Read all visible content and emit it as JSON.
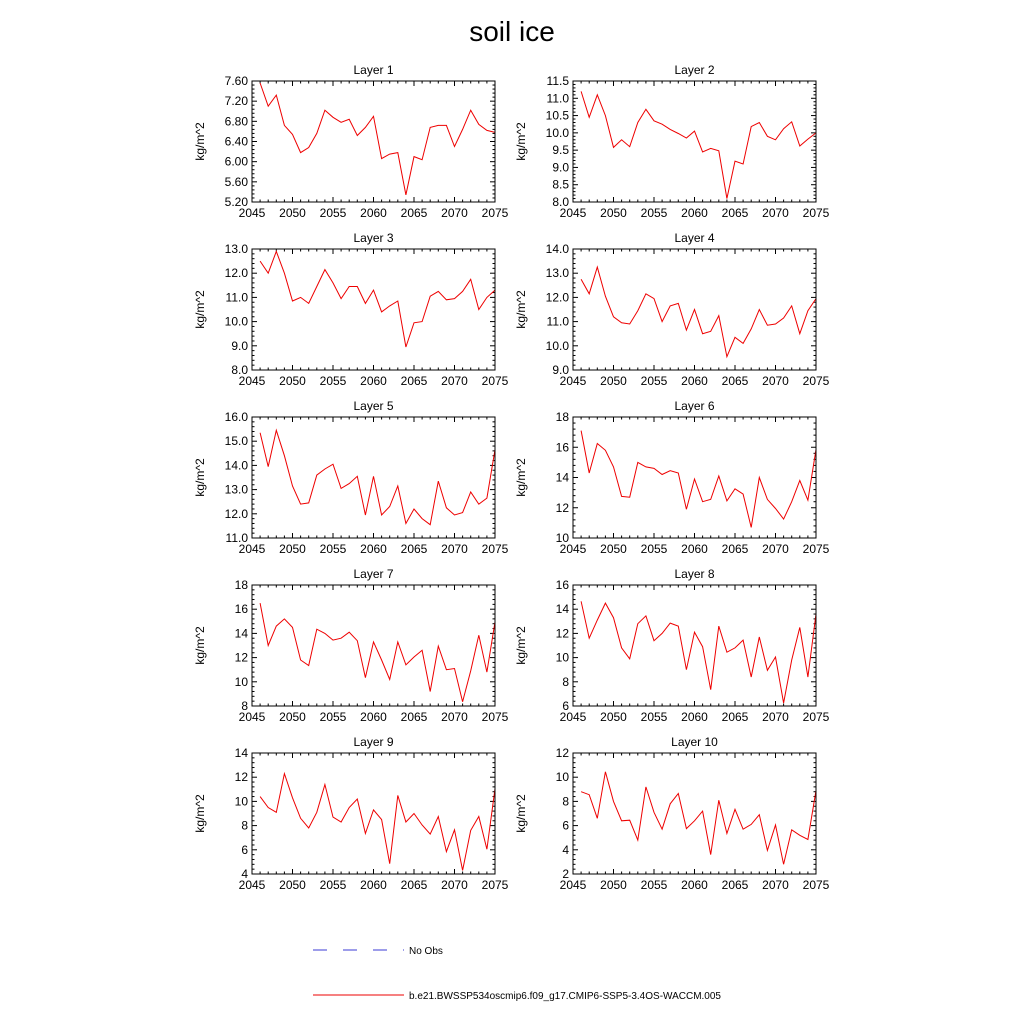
{
  "title": "soil ice",
  "legend": {
    "obs_label": "No Obs",
    "model_label": "b.e21.BWSSP534oscmip6.f09_g17.CMIP6-SSP5-3.4OS-WACCM.005",
    "obs_color": "#3b3bd6",
    "model_color": "#ee0000"
  },
  "chart_data": [
    {
      "type": "line",
      "title": "Layer 1",
      "ylabel": "kg/m^2",
      "xlim": [
        2045,
        2075
      ],
      "ylim": [
        5.2,
        7.6
      ],
      "yticks": [
        5.2,
        5.6,
        6.0,
        6.4,
        6.8,
        7.2,
        7.6
      ],
      "ytick_labels": [
        "5.20",
        "5.60",
        "6.00",
        "6.40",
        "6.80",
        "7.20",
        "7.60"
      ],
      "xticks": [
        2045,
        2050,
        2055,
        2060,
        2065,
        2070,
        2075
      ],
      "series": [
        {
          "x": [
            2046,
            2047,
            2048,
            2049,
            2050,
            2051,
            2052,
            2053,
            2054,
            2055,
            2056,
            2057,
            2058,
            2059,
            2060,
            2061,
            2062,
            2063,
            2064,
            2065,
            2066,
            2067,
            2068,
            2069,
            2070,
            2071,
            2072,
            2073,
            2074,
            2075
          ],
          "values": [
            7.56,
            7.1,
            7.32,
            6.72,
            6.54,
            6.18,
            6.28,
            6.56,
            7.02,
            6.88,
            6.78,
            6.84,
            6.52,
            6.68,
            6.9,
            6.06,
            6.15,
            6.18,
            5.34,
            6.1,
            6.04,
            6.68,
            6.72,
            6.72,
            6.3,
            6.64,
            7.02,
            6.74,
            6.62,
            6.58
          ]
        }
      ]
    },
    {
      "type": "line",
      "title": "Layer 2",
      "ylabel": "kg/m^2",
      "xlim": [
        2045,
        2075
      ],
      "ylim": [
        8.0,
        11.5
      ],
      "yticks": [
        8.0,
        8.5,
        9.0,
        9.5,
        10.0,
        10.5,
        11.0,
        11.5
      ],
      "ytick_labels": [
        "8.0",
        "8.5",
        "9.0",
        "9.5",
        "10.0",
        "10.5",
        "11.0",
        "11.5"
      ],
      "xticks": [
        2045,
        2050,
        2055,
        2060,
        2065,
        2070,
        2075
      ],
      "series": [
        {
          "x": [
            2046,
            2047,
            2048,
            2049,
            2050,
            2051,
            2052,
            2053,
            2054,
            2055,
            2056,
            2057,
            2058,
            2059,
            2060,
            2061,
            2062,
            2063,
            2064,
            2065,
            2066,
            2067,
            2068,
            2069,
            2070,
            2071,
            2072,
            2073,
            2074,
            2075
          ],
          "values": [
            11.2,
            10.45,
            11.1,
            10.5,
            9.58,
            9.8,
            9.6,
            10.3,
            10.68,
            10.35,
            10.25,
            10.1,
            9.98,
            9.85,
            10.05,
            9.45,
            9.55,
            9.48,
            8.1,
            9.18,
            9.1,
            10.18,
            10.3,
            9.9,
            9.8,
            10.12,
            10.32,
            9.62,
            9.82,
            10.0
          ]
        }
      ]
    },
    {
      "type": "line",
      "title": "Layer 3",
      "ylabel": "kg/m^2",
      "xlim": [
        2045,
        2075
      ],
      "ylim": [
        8.0,
        13.0
      ],
      "yticks": [
        8.0,
        9.0,
        10.0,
        11.0,
        12.0,
        13.0
      ],
      "ytick_labels": [
        "8.0",
        "9.0",
        "10.0",
        "11.0",
        "12.0",
        "13.0"
      ],
      "xticks": [
        2045,
        2050,
        2055,
        2060,
        2065,
        2070,
        2075
      ],
      "series": [
        {
          "x": [
            2046,
            2047,
            2048,
            2049,
            2050,
            2051,
            2052,
            2053,
            2054,
            2055,
            2056,
            2057,
            2058,
            2059,
            2060,
            2061,
            2062,
            2063,
            2064,
            2065,
            2066,
            2067,
            2068,
            2069,
            2070,
            2071,
            2072,
            2073,
            2074,
            2075
          ],
          "values": [
            12.5,
            12.0,
            12.9,
            12.0,
            10.85,
            11.0,
            10.75,
            11.45,
            12.15,
            11.6,
            10.95,
            11.45,
            11.45,
            10.75,
            11.3,
            10.4,
            10.65,
            10.85,
            8.95,
            9.95,
            10.0,
            11.05,
            11.25,
            10.9,
            10.95,
            11.25,
            11.75,
            10.5,
            11.0,
            11.3
          ]
        }
      ]
    },
    {
      "type": "line",
      "title": "Layer 4",
      "ylabel": "kg/m^2",
      "xlim": [
        2045,
        2075
      ],
      "ylim": [
        9.0,
        14.0
      ],
      "yticks": [
        9.0,
        10.0,
        11.0,
        12.0,
        13.0,
        14.0
      ],
      "ytick_labels": [
        "9.0",
        "10.0",
        "11.0",
        "12.0",
        "13.0",
        "14.0"
      ],
      "xticks": [
        2045,
        2050,
        2055,
        2060,
        2065,
        2070,
        2075
      ],
      "series": [
        {
          "x": [
            2046,
            2047,
            2048,
            2049,
            2050,
            2051,
            2052,
            2053,
            2054,
            2055,
            2056,
            2057,
            2058,
            2059,
            2060,
            2061,
            2062,
            2063,
            2064,
            2065,
            2066,
            2067,
            2068,
            2069,
            2070,
            2071,
            2072,
            2073,
            2074,
            2075
          ],
          "values": [
            12.75,
            12.15,
            13.25,
            12.05,
            11.2,
            10.95,
            10.9,
            11.45,
            12.15,
            11.95,
            11.0,
            11.65,
            11.75,
            10.65,
            11.5,
            10.5,
            10.6,
            11.25,
            9.55,
            10.35,
            10.1,
            10.7,
            11.5,
            10.85,
            10.9,
            11.15,
            11.65,
            10.5,
            11.45,
            11.95
          ]
        }
      ]
    },
    {
      "type": "line",
      "title": "Layer 5",
      "ylabel": "kg/m^2",
      "xlim": [
        2045,
        2075
      ],
      "ylim": [
        11.0,
        16.0
      ],
      "yticks": [
        11.0,
        12.0,
        13.0,
        14.0,
        15.0,
        16.0
      ],
      "ytick_labels": [
        "11.0",
        "12.0",
        "13.0",
        "14.0",
        "15.0",
        "16.0"
      ],
      "xticks": [
        2045,
        2050,
        2055,
        2060,
        2065,
        2070,
        2075
      ],
      "series": [
        {
          "x": [
            2046,
            2047,
            2048,
            2049,
            2050,
            2051,
            2052,
            2053,
            2054,
            2055,
            2056,
            2057,
            2058,
            2059,
            2060,
            2061,
            2062,
            2063,
            2064,
            2065,
            2066,
            2067,
            2068,
            2069,
            2070,
            2071,
            2072,
            2073,
            2074,
            2075
          ],
          "values": [
            15.35,
            13.95,
            15.45,
            14.4,
            13.15,
            12.4,
            12.45,
            13.6,
            13.85,
            14.05,
            13.05,
            13.25,
            13.55,
            11.95,
            13.55,
            11.95,
            12.3,
            13.15,
            11.6,
            12.2,
            11.8,
            11.55,
            13.35,
            12.25,
            11.95,
            12.05,
            12.9,
            12.4,
            12.65,
            14.65
          ]
        }
      ]
    },
    {
      "type": "line",
      "title": "Layer 6",
      "ylabel": "kg/m^2",
      "xlim": [
        2045,
        2075
      ],
      "ylim": [
        10,
        18
      ],
      "yticks": [
        10,
        12,
        14,
        16,
        18
      ],
      "ytick_labels": [
        "10",
        "12",
        "14",
        "16",
        "18"
      ],
      "xticks": [
        2045,
        2050,
        2055,
        2060,
        2065,
        2070,
        2075
      ],
      "series": [
        {
          "x": [
            2046,
            2047,
            2048,
            2049,
            2050,
            2051,
            2052,
            2053,
            2054,
            2055,
            2056,
            2057,
            2058,
            2059,
            2060,
            2061,
            2062,
            2063,
            2064,
            2065,
            2066,
            2067,
            2068,
            2069,
            2070,
            2071,
            2072,
            2073,
            2074,
            2075
          ],
          "values": [
            17.1,
            14.3,
            16.25,
            15.8,
            14.7,
            12.75,
            12.7,
            15.0,
            14.7,
            14.6,
            14.2,
            14.45,
            14.3,
            11.9,
            13.9,
            12.4,
            12.55,
            14.1,
            12.45,
            13.25,
            12.9,
            10.7,
            14.0,
            12.55,
            11.95,
            11.25,
            12.4,
            13.8,
            12.5,
            15.85
          ]
        }
      ]
    },
    {
      "type": "line",
      "title": "Layer 7",
      "ylabel": "kg/m^2",
      "xlim": [
        2045,
        2075
      ],
      "ylim": [
        8,
        18
      ],
      "yticks": [
        8,
        10,
        12,
        14,
        16,
        18
      ],
      "ytick_labels": [
        "8",
        "10",
        "12",
        "14",
        "16",
        "18"
      ],
      "xticks": [
        2045,
        2050,
        2055,
        2060,
        2065,
        2070,
        2075
      ],
      "series": [
        {
          "x": [
            2046,
            2047,
            2048,
            2049,
            2050,
            2051,
            2052,
            2053,
            2054,
            2055,
            2056,
            2057,
            2058,
            2059,
            2060,
            2061,
            2062,
            2063,
            2064,
            2065,
            2066,
            2067,
            2068,
            2069,
            2070,
            2071,
            2072,
            2073,
            2074,
            2075
          ],
          "values": [
            16.5,
            13.0,
            14.6,
            15.2,
            14.5,
            11.8,
            11.35,
            14.35,
            14.0,
            13.45,
            13.6,
            14.1,
            13.4,
            10.35,
            13.3,
            11.8,
            10.2,
            13.3,
            11.4,
            12.05,
            12.6,
            9.2,
            12.95,
            11.0,
            11.1,
            8.35,
            10.9,
            13.85,
            10.8,
            14.95
          ]
        }
      ]
    },
    {
      "type": "line",
      "title": "Layer 8",
      "ylabel": "kg/m^2",
      "xlim": [
        2045,
        2075
      ],
      "ylim": [
        6,
        16
      ],
      "yticks": [
        6,
        8,
        10,
        12,
        14,
        16
      ],
      "ytick_labels": [
        "6",
        "8",
        "10",
        "12",
        "14",
        "16"
      ],
      "xticks": [
        2045,
        2050,
        2055,
        2060,
        2065,
        2070,
        2075
      ],
      "series": [
        {
          "x": [
            2046,
            2047,
            2048,
            2049,
            2050,
            2051,
            2052,
            2053,
            2054,
            2055,
            2056,
            2057,
            2058,
            2059,
            2060,
            2061,
            2062,
            2063,
            2064,
            2065,
            2066,
            2067,
            2068,
            2069,
            2070,
            2071,
            2072,
            2073,
            2074,
            2075
          ],
          "values": [
            14.65,
            11.6,
            13.1,
            14.5,
            13.3,
            10.8,
            9.9,
            12.8,
            13.45,
            11.4,
            12.0,
            12.85,
            12.6,
            9.0,
            12.1,
            10.9,
            7.35,
            12.6,
            10.45,
            10.8,
            11.45,
            8.4,
            11.7,
            8.95,
            10.05,
            6.25,
            9.8,
            12.5,
            8.4,
            13.6
          ]
        }
      ]
    },
    {
      "type": "line",
      "title": "Layer 9",
      "ylabel": "kg/m^2",
      "xlim": [
        2045,
        2075
      ],
      "ylim": [
        4,
        14
      ],
      "yticks": [
        4,
        6,
        8,
        10,
        12,
        14
      ],
      "ytick_labels": [
        "4",
        "6",
        "8",
        "10",
        "12",
        "14"
      ],
      "xticks": [
        2045,
        2050,
        2055,
        2060,
        2065,
        2070,
        2075
      ],
      "xtick_labels": [
        "2045",
        "2050",
        "2055",
        "2060",
        "2065",
        "2070",
        "2075"
      ],
      "series": [
        {
          "x": [
            2046,
            2047,
            2048,
            2049,
            2050,
            2051,
            2052,
            2053,
            2054,
            2055,
            2056,
            2057,
            2058,
            2059,
            2060,
            2061,
            2062,
            2063,
            2064,
            2065,
            2066,
            2067,
            2068,
            2069,
            2070,
            2071,
            2072,
            2073,
            2074,
            2075
          ],
          "values": [
            10.4,
            9.5,
            9.1,
            12.3,
            10.3,
            8.6,
            7.8,
            9.1,
            11.4,
            8.7,
            8.3,
            9.5,
            10.2,
            7.35,
            9.3,
            8.5,
            4.85,
            10.5,
            8.3,
            9.0,
            8.05,
            7.3,
            8.75,
            5.85,
            7.65,
            4.3,
            7.6,
            8.75,
            6.05,
            11.05
          ]
        }
      ]
    },
    {
      "type": "line",
      "title": "Layer 10",
      "ylabel": "kg/m^2",
      "xlim": [
        2045,
        2075
      ],
      "ylim": [
        2,
        12
      ],
      "yticks": [
        2,
        4,
        6,
        8,
        10,
        12
      ],
      "ytick_labels": [
        "2",
        "4",
        "6",
        "8",
        "10",
        "12"
      ],
      "xticks": [
        2045,
        2050,
        2055,
        2060,
        2065,
        2070,
        2075
      ],
      "xtick_labels": [
        "2045",
        "2050",
        "2055",
        "2060",
        "2065",
        "2070",
        "2075"
      ],
      "series": [
        {
          "x": [
            2046,
            2047,
            2048,
            2049,
            2050,
            2051,
            2052,
            2053,
            2054,
            2055,
            2056,
            2057,
            2058,
            2059,
            2060,
            2061,
            2062,
            2063,
            2064,
            2065,
            2066,
            2067,
            2068,
            2069,
            2070,
            2071,
            2072,
            2073,
            2074,
            2075
          ],
          "values": [
            8.8,
            8.55,
            6.6,
            10.45,
            8.0,
            6.4,
            6.45,
            4.8,
            9.2,
            7.1,
            5.7,
            7.8,
            8.65,
            5.75,
            6.4,
            7.2,
            3.6,
            8.1,
            5.35,
            7.35,
            5.7,
            6.1,
            6.9,
            3.95,
            6.05,
            2.8,
            5.65,
            5.2,
            4.85,
            8.9
          ]
        }
      ]
    }
  ]
}
